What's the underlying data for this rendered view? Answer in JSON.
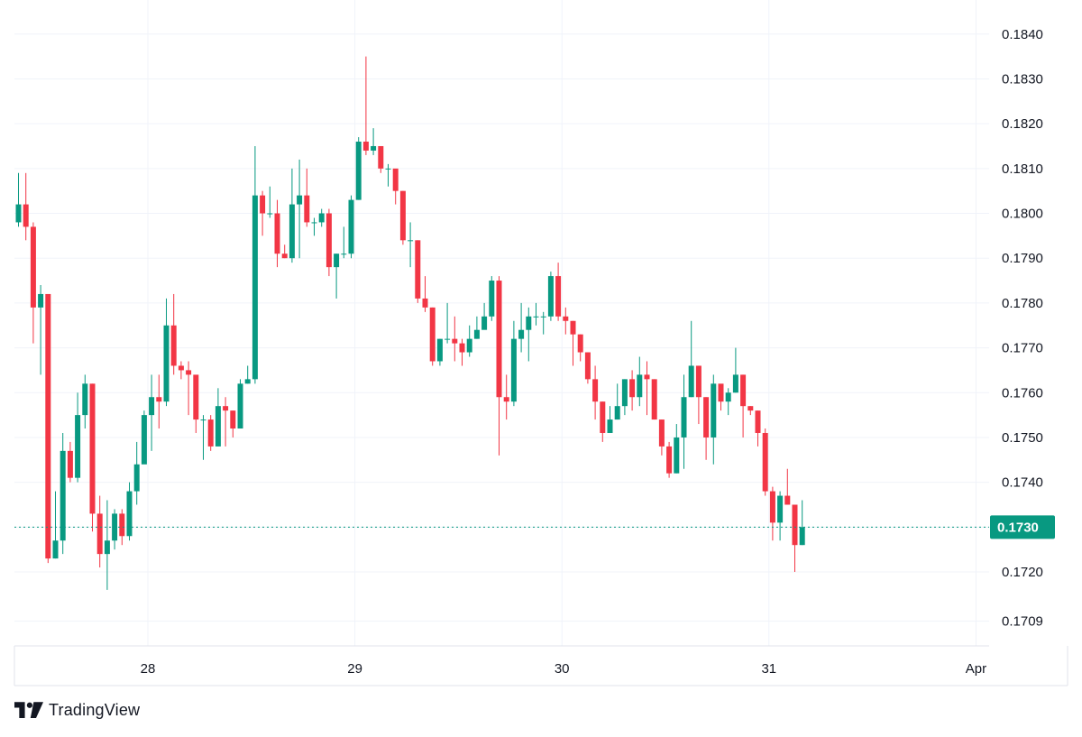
{
  "brand": {
    "name": "TradingView",
    "logo_icon": "tradingview-logo-icon"
  },
  "colors": {
    "up": "#089981",
    "down": "#f23645",
    "grid": "#f0f3fa",
    "text": "#131722",
    "current_price": "#089981"
  },
  "chart_data": {
    "type": "candlestick",
    "ylim": [
      0.17035,
      0.18476
    ],
    "y_ticks": [
      "0.1709",
      "0.1720",
      "0.1730",
      "0.1740",
      "0.1750",
      "0.1760",
      "0.1770",
      "0.1780",
      "0.1790",
      "0.1800",
      "0.1810",
      "0.1820",
      "0.1830",
      "0.1840"
    ],
    "x_ticks": [
      {
        "label": "28",
        "index": 17.5
      },
      {
        "label": "29",
        "index": 45.5
      },
      {
        "label": "30",
        "index": 73.5
      },
      {
        "label": "31",
        "index": 101.5
      },
      {
        "label": "Apr",
        "index": 129.5
      }
    ],
    "current_price": "0.1730",
    "candles": [
      [
        0.1798,
        0.1802,
        0.1809,
        0.1797
      ],
      [
        0.1802,
        0.1797,
        0.1809,
        0.1794
      ],
      [
        0.1797,
        0.1779,
        0.1798,
        0.1771
      ],
      [
        0.1779,
        0.1782,
        0.1784,
        0.1764
      ],
      [
        0.1782,
        0.1723,
        0.1782,
        0.1722
      ],
      [
        0.1723,
        0.1727,
        0.1738,
        0.1723
      ],
      [
        0.1727,
        0.1747,
        0.1751,
        0.1724
      ],
      [
        0.1747,
        0.1741,
        0.1749,
        0.174
      ],
      [
        0.1741,
        0.1755,
        0.176,
        0.174
      ],
      [
        0.1755,
        0.1762,
        0.1764,
        0.1752
      ],
      [
        0.1762,
        0.1733,
        0.1762,
        0.1729
      ],
      [
        0.1733,
        0.1724,
        0.1737,
        0.1721
      ],
      [
        0.1724,
        0.1727,
        0.1736,
        0.1716
      ],
      [
        0.1727,
        0.1733,
        0.1734,
        0.1725
      ],
      [
        0.1733,
        0.1728,
        0.1734,
        0.1726
      ],
      [
        0.1728,
        0.1738,
        0.174,
        0.1727
      ],
      [
        0.1738,
        0.1744,
        0.1749,
        0.1735
      ],
      [
        0.1744,
        0.1755,
        0.1756,
        0.1746
      ],
      [
        0.1755,
        0.1759,
        0.1764,
        0.1747
      ],
      [
        0.1759,
        0.1758,
        0.1764,
        0.1752
      ],
      [
        0.1758,
        0.1775,
        0.1781,
        0.1757
      ],
      [
        0.1775,
        0.1766,
        0.1782,
        0.1764
      ],
      [
        0.1766,
        0.1765,
        0.1767,
        0.1763
      ],
      [
        0.1765,
        0.1764,
        0.1767,
        0.1755
      ],
      [
        0.1764,
        0.1754,
        0.1762,
        0.1751
      ],
      [
        0.1754,
        0.1754,
        0.1755,
        0.1745
      ],
      [
        0.1754,
        0.1748,
        0.1755,
        0.1747
      ],
      [
        0.1748,
        0.1757,
        0.1761,
        0.1748
      ],
      [
        0.1757,
        0.1756,
        0.1759,
        0.1748
      ],
      [
        0.1756,
        0.1752,
        0.1756,
        0.175
      ],
      [
        0.1752,
        0.1762,
        0.1763,
        0.1752
      ],
      [
        0.1762,
        0.1763,
        0.1766,
        0.1762
      ],
      [
        0.1763,
        0.1804,
        0.1815,
        0.1762
      ],
      [
        0.1804,
        0.18,
        0.1805,
        0.1795
      ],
      [
        0.18,
        0.18,
        0.1806,
        0.1799
      ],
      [
        0.18,
        0.1791,
        0.1803,
        0.1788
      ],
      [
        0.1791,
        0.179,
        0.1793,
        0.179
      ],
      [
        0.179,
        0.1802,
        0.181,
        0.1789
      ],
      [
        0.1802,
        0.1804,
        0.1812,
        0.179
      ],
      [
        0.1804,
        0.1798,
        0.181,
        0.1797
      ],
      [
        0.1798,
        0.1798,
        0.1799,
        0.1795
      ],
      [
        0.1798,
        0.18,
        0.1801,
        0.1797
      ],
      [
        0.18,
        0.1788,
        0.1801,
        0.1786
      ],
      [
        0.1788,
        0.1791,
        0.1791,
        0.1781
      ],
      [
        0.1791,
        0.1791,
        0.1797,
        0.179
      ],
      [
        0.1791,
        0.1803,
        0.1804,
        0.179
      ],
      [
        0.1803,
        0.1816,
        0.1817,
        0.1803
      ],
      [
        0.1816,
        0.1814,
        0.1835,
        0.1813
      ],
      [
        0.1814,
        0.1815,
        0.1819,
        0.1813
      ],
      [
        0.1815,
        0.181,
        0.1815,
        0.1809
      ],
      [
        0.181,
        0.181,
        0.1811,
        0.1806
      ],
      [
        0.181,
        0.1805,
        0.1809,
        0.1802
      ],
      [
        0.1805,
        0.1794,
        0.1805,
        0.1793
      ],
      [
        0.1794,
        0.1794,
        0.1798,
        0.1788
      ],
      [
        0.1794,
        0.1781,
        0.1794,
        0.178
      ],
      [
        0.1781,
        0.1779,
        0.1786,
        0.1778
      ],
      [
        0.1779,
        0.1767,
        0.1779,
        0.1766
      ],
      [
        0.1767,
        0.1772,
        0.1772,
        0.1766
      ],
      [
        0.1772,
        0.1772,
        0.178,
        0.1771
      ],
      [
        0.1772,
        0.1771,
        0.1777,
        0.1767
      ],
      [
        0.1771,
        0.1769,
        0.1772,
        0.1766
      ],
      [
        0.1769,
        0.1772,
        0.1775,
        0.1768
      ],
      [
        0.1772,
        0.1774,
        0.1777,
        0.1772
      ],
      [
        0.1774,
        0.1777,
        0.178,
        0.1776
      ],
      [
        0.1777,
        0.1785,
        0.1786,
        0.1776
      ],
      [
        0.1785,
        0.1759,
        0.1786,
        0.1746
      ],
      [
        0.1759,
        0.1758,
        0.1764,
        0.1754
      ],
      [
        0.1758,
        0.1772,
        0.1776,
        0.1757
      ],
      [
        0.1772,
        0.1774,
        0.178,
        0.1769
      ],
      [
        0.1774,
        0.1777,
        0.1779,
        0.1767
      ],
      [
        0.1777,
        0.1777,
        0.178,
        0.1775
      ],
      [
        0.1777,
        0.1777,
        0.1778,
        0.1773
      ],
      [
        0.1777,
        0.1786,
        0.1787,
        0.1776
      ],
      [
        0.1786,
        0.1777,
        0.1789,
        0.1776
      ],
      [
        0.1777,
        0.1776,
        0.1779,
        0.1773
      ],
      [
        0.1776,
        0.1773,
        0.1776,
        0.1766
      ],
      [
        0.1773,
        0.1769,
        0.1773,
        0.1767
      ],
      [
        0.1769,
        0.1763,
        0.1769,
        0.1762
      ],
      [
        0.1763,
        0.1758,
        0.1766,
        0.1754
      ],
      [
        0.1758,
        0.1751,
        0.1758,
        0.1749
      ],
      [
        0.1751,
        0.1754,
        0.1757,
        0.1751
      ],
      [
        0.1754,
        0.1757,
        0.1762,
        0.1754
      ],
      [
        0.1757,
        0.1763,
        0.1763,
        0.1755
      ],
      [
        0.1763,
        0.1759,
        0.1765,
        0.1756
      ],
      [
        0.1759,
        0.1764,
        0.1768,
        0.1757
      ],
      [
        0.1764,
        0.1763,
        0.1767,
        0.1755
      ],
      [
        0.1763,
        0.1754,
        0.1763,
        0.1754
      ],
      [
        0.1754,
        0.1748,
        0.1754,
        0.1746
      ],
      [
        0.1748,
        0.1742,
        0.1749,
        0.1741
      ],
      [
        0.1742,
        0.175,
        0.1753,
        0.1742
      ],
      [
        0.175,
        0.1759,
        0.1764,
        0.1743
      ],
      [
        0.1759,
        0.1766,
        0.1776,
        0.1759
      ],
      [
        0.1766,
        0.1759,
        0.1766,
        0.1753
      ],
      [
        0.1759,
        0.175,
        0.1759,
        0.1745
      ],
      [
        0.175,
        0.1762,
        0.1764,
        0.1744
      ],
      [
        0.1762,
        0.1758,
        0.176,
        0.1756
      ],
      [
        0.1758,
        0.176,
        0.1761,
        0.1755
      ],
      [
        0.176,
        0.1764,
        0.177,
        0.176
      ],
      [
        0.1764,
        0.1757,
        0.1764,
        0.175
      ],
      [
        0.1757,
        0.1756,
        0.1757,
        0.1755
      ],
      [
        0.1756,
        0.1751,
        0.1756,
        0.1748
      ],
      [
        0.1751,
        0.1738,
        0.1752,
        0.1737
      ],
      [
        0.1738,
        0.1731,
        0.1739,
        0.1727
      ],
      [
        0.1731,
        0.1737,
        0.1738,
        0.1727
      ],
      [
        0.1737,
        0.1735,
        0.1743,
        0.1735
      ],
      [
        0.1735,
        0.1726,
        0.1735,
        0.172
      ],
      [
        0.1726,
        0.173,
        0.1736,
        0.1726
      ]
    ]
  }
}
